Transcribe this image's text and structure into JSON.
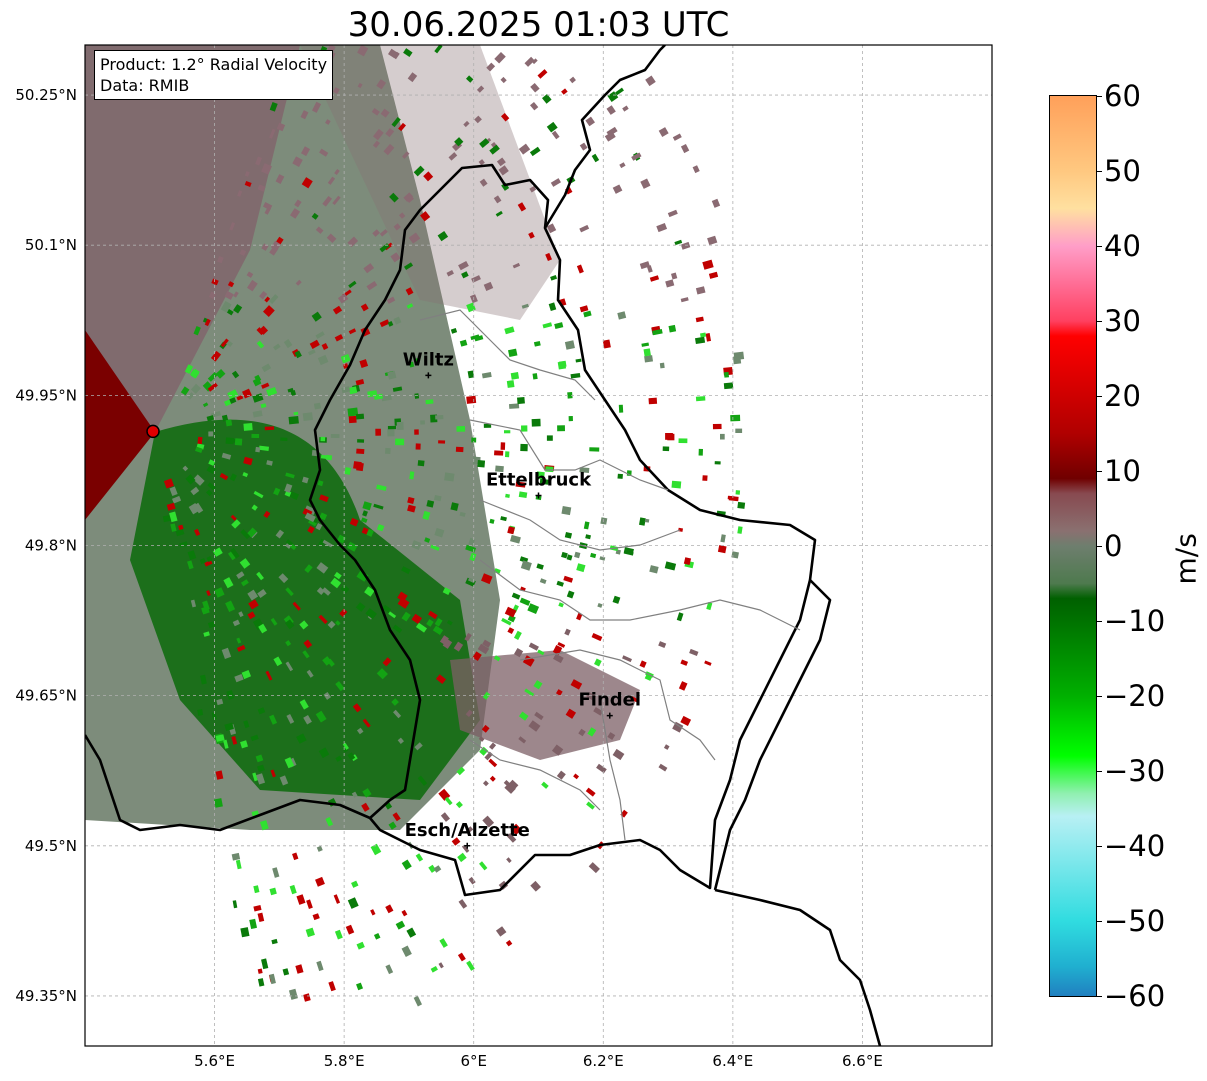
{
  "title": "30.06.2025 01:03 UTC",
  "info": {
    "product": "Product: 1.2° Radial Velocity",
    "data": "Data: RMIB"
  },
  "map": {
    "lat_ticks": [
      "50.25°N",
      "50.1°N",
      "49.95°N",
      "49.8°N",
      "49.65°N",
      "49.5°N",
      "49.35°N"
    ],
    "lon_ticks": [
      "5.6°E",
      "5.8°E",
      "6°E",
      "6.2°E",
      "6.4°E",
      "6.6°E"
    ],
    "lat_range": [
      49.3,
      50.3
    ],
    "lon_range": [
      5.4,
      6.8
    ],
    "radar_site": {
      "lon": 5.505,
      "lat": 49.914
    },
    "cities": [
      {
        "name": "Wiltz",
        "lon": 5.93,
        "lat": 49.97
      },
      {
        "name": "Ettelbruck",
        "lon": 6.1,
        "lat": 49.85
      },
      {
        "name": "Findel",
        "lon": 6.21,
        "lat": 49.63
      },
      {
        "name": "Esch/Alzette",
        "lon": 5.99,
        "lat": 49.5
      }
    ]
  },
  "colorbar": {
    "label": "m/s",
    "ticks": [
      "60",
      "50",
      "40",
      "30",
      "20",
      "10",
      "0",
      "−10",
      "−20",
      "−30",
      "−40",
      "−50",
      "−60"
    ],
    "range": [
      -60,
      60
    ],
    "stops": [
      {
        "v": 60,
        "c": "#ffa05a"
      },
      {
        "v": 50,
        "c": "#ffc880"
      },
      {
        "v": 45,
        "c": "#ffe0a0"
      },
      {
        "v": 40,
        "c": "#ff9ec8"
      },
      {
        "v": 35,
        "c": "#ff6e96"
      },
      {
        "v": 30,
        "c": "#ff4060"
      },
      {
        "v": 28,
        "c": "#ff0000"
      },
      {
        "v": 15,
        "c": "#b00000"
      },
      {
        "v": 9,
        "c": "#700000"
      },
      {
        "v": 7,
        "c": "#884a50"
      },
      {
        "v": 2,
        "c": "#8a7070"
      },
      {
        "v": 0,
        "c": "#6e7e6e"
      },
      {
        "v": -5,
        "c": "#4e7a4e"
      },
      {
        "v": -7,
        "c": "#006000"
      },
      {
        "v": -20,
        "c": "#00b000"
      },
      {
        "v": -28,
        "c": "#00ff00"
      },
      {
        "v": -33,
        "c": "#90f0b0"
      },
      {
        "v": -36,
        "c": "#b8f0f4"
      },
      {
        "v": -50,
        "c": "#30dce0"
      },
      {
        "v": -56,
        "c": "#20b0d0"
      },
      {
        "v": -60,
        "c": "#2080c0"
      }
    ]
  }
}
